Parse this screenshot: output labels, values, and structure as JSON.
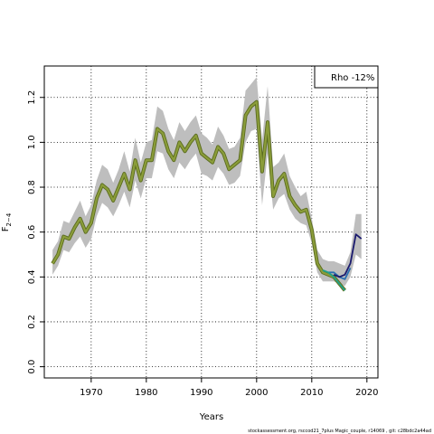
{
  "chart_data": {
    "type": "line",
    "xlabel": "Years",
    "ylabel": "F",
    "ylabel_subscript": "2−4",
    "legend": "Rho -12%",
    "footer": "stockassessment.org, rsccod21_7plus  Magic_couple, r14069 , git: c28bdc2a44ad",
    "xlim": [
      1961.5,
      2022
    ],
    "ylim": [
      -0.05,
      1.34
    ],
    "x_ticks": [
      1970,
      1980,
      1990,
      2000,
      2010,
      2020
    ],
    "y_ticks": [
      0.0,
      0.2,
      0.4,
      0.6,
      0.8,
      1.0,
      1.2
    ],
    "x_tick_labels": [
      "1970",
      "1980",
      "1990",
      "2000",
      "2010",
      "2020"
    ],
    "y_tick_labels": [
      "0.0",
      "0.2",
      "0.4",
      "0.6",
      "0.8",
      "1.0",
      "1.2"
    ],
    "grid": true,
    "legend_position": "top-right",
    "ribbon_color": "#bebebe",
    "main_color": "#8b9d3a",
    "main_shadow_color": "#5a6b1e",
    "ci": {
      "x": [
        1963,
        1964,
        1965,
        1966,
        1967,
        1968,
        1969,
        1970,
        1971,
        1972,
        1973,
        1974,
        1975,
        1976,
        1977,
        1978,
        1979,
        1980,
        1981,
        1982,
        1983,
        1984,
        1985,
        1986,
        1987,
        1988,
        1989,
        1990,
        1991,
        1992,
        1993,
        1994,
        1995,
        1996,
        1997,
        1998,
        1999,
        2000,
        2001,
        2002,
        2003,
        2004,
        2005,
        2006,
        2007,
        2008,
        2009,
        2010,
        2011,
        2012,
        2013,
        2014,
        2015,
        2016,
        2017,
        2018,
        2019
      ],
      "lower": [
        0.41,
        0.45,
        0.52,
        0.51,
        0.55,
        0.58,
        0.53,
        0.57,
        0.67,
        0.73,
        0.71,
        0.67,
        0.72,
        0.78,
        0.71,
        0.83,
        0.75,
        0.84,
        0.84,
        0.96,
        0.95,
        0.88,
        0.84,
        0.91,
        0.88,
        0.92,
        0.95,
        0.86,
        0.85,
        0.83,
        0.89,
        0.86,
        0.81,
        0.82,
        0.85,
        1.0,
        1.05,
        1.06,
        0.72,
        0.95,
        0.7,
        0.75,
        0.77,
        0.7,
        0.66,
        0.64,
        0.63,
        0.55,
        0.42,
        0.38,
        0.38,
        0.38,
        0.37,
        0.36,
        0.4,
        0.5,
        0.48
      ],
      "upper": [
        0.52,
        0.56,
        0.65,
        0.64,
        0.69,
        0.74,
        0.67,
        0.72,
        0.83,
        0.9,
        0.88,
        0.82,
        0.88,
        0.96,
        0.87,
        1.02,
        0.91,
        1.0,
        1.01,
        1.16,
        1.14,
        1.06,
        1.01,
        1.09,
        1.05,
        1.09,
        1.12,
        1.04,
        1.02,
        0.99,
        1.07,
        1.03,
        0.97,
        0.98,
        1.02,
        1.23,
        1.26,
        1.29,
        1.01,
        1.25,
        0.89,
        0.91,
        0.95,
        0.85,
        0.8,
        0.76,
        0.78,
        0.66,
        0.52,
        0.48,
        0.47,
        0.47,
        0.46,
        0.45,
        0.51,
        0.68,
        0.68
      ]
    },
    "series": [
      {
        "color": "#7a9a2c",
        "x": [
          1963,
          1964,
          1965,
          1966,
          1967,
          1968,
          1969,
          1970,
          1971,
          1972,
          1973,
          1974,
          1975,
          1976,
          1977,
          1978,
          1979,
          1980,
          1981,
          1982,
          1983,
          1984,
          1985,
          1986,
          1987,
          1988,
          1989,
          1990,
          1991,
          1992,
          1993,
          1994,
          1995,
          1996,
          1997,
          1998,
          1999,
          2000,
          2001,
          2002,
          2003,
          2004,
          2005,
          2006,
          2007,
          2008,
          2009,
          2010,
          2011,
          2012,
          2013,
          2014,
          2015,
          2016
        ],
        "y": [
          0.46,
          0.5,
          0.58,
          0.57,
          0.62,
          0.66,
          0.6,
          0.64,
          0.75,
          0.81,
          0.79,
          0.74,
          0.8,
          0.86,
          0.79,
          0.92,
          0.83,
          0.92,
          0.92,
          1.06,
          1.04,
          0.96,
          0.92,
          1.0,
          0.96,
          1.0,
          1.03,
          0.95,
          0.93,
          0.91,
          0.98,
          0.95,
          0.88,
          0.9,
          0.92,
          1.12,
          1.16,
          1.18,
          0.87,
          1.09,
          0.76,
          0.83,
          0.86,
          0.76,
          0.72,
          0.69,
          0.7,
          0.61,
          0.46,
          0.42,
          0.41,
          0.4,
          0.37,
          0.34
        ]
      },
      {
        "color": "#2a6fb0",
        "x": [
          2013,
          2014,
          2015,
          2016,
          2017
        ],
        "y": [
          0.42,
          0.42,
          0.4,
          0.39,
          0.44
        ]
      },
      {
        "color": "#1fa08a",
        "x": [
          2012,
          2013,
          2014,
          2015,
          2016
        ],
        "y": [
          0.43,
          0.42,
          0.4,
          0.37,
          0.34
        ]
      },
      {
        "color": "#1a1a6e",
        "x": [
          2014,
          2015,
          2016,
          2017,
          2018,
          2019
        ],
        "y": [
          0.41,
          0.4,
          0.41,
          0.46,
          0.59,
          0.57
        ]
      }
    ]
  }
}
